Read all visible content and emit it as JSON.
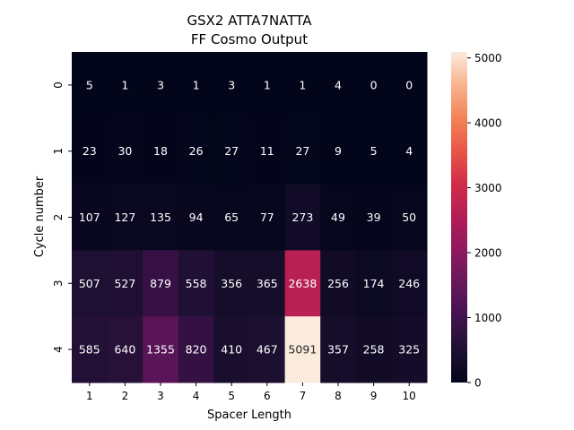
{
  "chart_data": {
    "type": "heatmap",
    "title_lines": [
      "GSX2 ATTA7NATTA",
      "FF  Cosmo Output"
    ],
    "xlabel": "Spacer Length",
    "ylabel": "Cycle number",
    "x_categories": [
      "1",
      "2",
      "3",
      "4",
      "5",
      "6",
      "7",
      "8",
      "9",
      "10"
    ],
    "y_categories": [
      "0",
      "1",
      "2",
      "3",
      "4"
    ],
    "values": [
      [
        5,
        1,
        3,
        1,
        3,
        1,
        1,
        4,
        0,
        0
      ],
      [
        23,
        30,
        18,
        26,
        27,
        11,
        27,
        9,
        5,
        4
      ],
      [
        107,
        127,
        135,
        94,
        65,
        77,
        273,
        49,
        39,
        50
      ],
      [
        507,
        527,
        879,
        558,
        356,
        365,
        2638,
        256,
        174,
        246
      ],
      [
        585,
        640,
        1355,
        820,
        410,
        467,
        5091,
        357,
        258,
        325
      ]
    ],
    "colorbar": {
      "min": 0,
      "max": 5091,
      "ticks": [
        0,
        1000,
        2000,
        3000,
        4000,
        5000
      ],
      "colormap": "rocket"
    },
    "grid": false,
    "annotations": "cell values shown in each cell"
  }
}
